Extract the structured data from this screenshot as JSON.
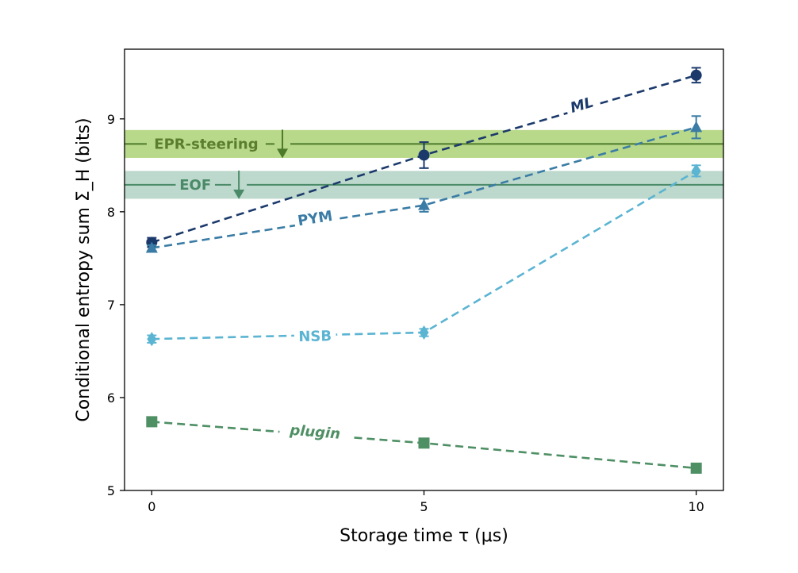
{
  "chart_data": {
    "type": "line",
    "xlabel": "Storage time τ (μs)",
    "ylabel": "Conditional entropy sum Σ_H (bits)",
    "xlim": [
      -0.5,
      10.5
    ],
    "ylim": [
      5.0,
      9.75
    ],
    "xticks": [
      0,
      5,
      10
    ],
    "yticks": [
      5,
      6,
      7,
      8,
      9
    ],
    "x": [
      0,
      5,
      10
    ],
    "series": [
      {
        "name": "ML",
        "color": "#1b3a6b",
        "marker": "circle",
        "values": [
          7.67,
          8.61,
          9.47
        ],
        "errors": [
          0.05,
          0.14,
          0.08
        ],
        "label_at": {
          "x": 7.9,
          "y": 9.15
        },
        "label_italic": true
      },
      {
        "name": "PYM",
        "color": "#3a7ca5",
        "marker": "triangle",
        "values": [
          7.61,
          8.07,
          8.91
        ],
        "errors": [
          0.03,
          0.07,
          0.12
        ],
        "label_at": {
          "x": 3.0,
          "y": 7.93
        },
        "label_italic": false
      },
      {
        "name": "NSB",
        "color": "#5ab4d2",
        "marker": "diamond",
        "values": [
          6.63,
          6.7,
          8.44
        ],
        "errors": [
          0.04,
          0.04,
          0.06
        ],
        "label_at": {
          "x": 3.0,
          "y": 6.66
        },
        "label_italic": false
      },
      {
        "name": "plugin",
        "color": "#4e8f64",
        "marker": "square",
        "values": [
          5.74,
          5.51,
          5.24
        ],
        "errors": [
          0.0,
          0.0,
          0.0
        ],
        "label_at": {
          "x": 3.0,
          "y": 5.63
        },
        "label_italic": true
      }
    ],
    "bands": [
      {
        "name": "EPR-steering",
        "center": 8.73,
        "low": 8.58,
        "high": 8.88,
        "band_color": "#b9d98a",
        "line_color": "#4d7a2a",
        "text_color": "#5b7d2e",
        "label_x": 1.0,
        "arrow_x": 2.4
      },
      {
        "name": "EOF",
        "center": 8.29,
        "low": 8.14,
        "high": 8.44,
        "band_color": "#bdd8cc",
        "line_color": "#4a8a68",
        "text_color": "#4a8a68",
        "label_x": 0.8,
        "arrow_x": 1.6
      }
    ],
    "grid": false,
    "legend": "none"
  }
}
